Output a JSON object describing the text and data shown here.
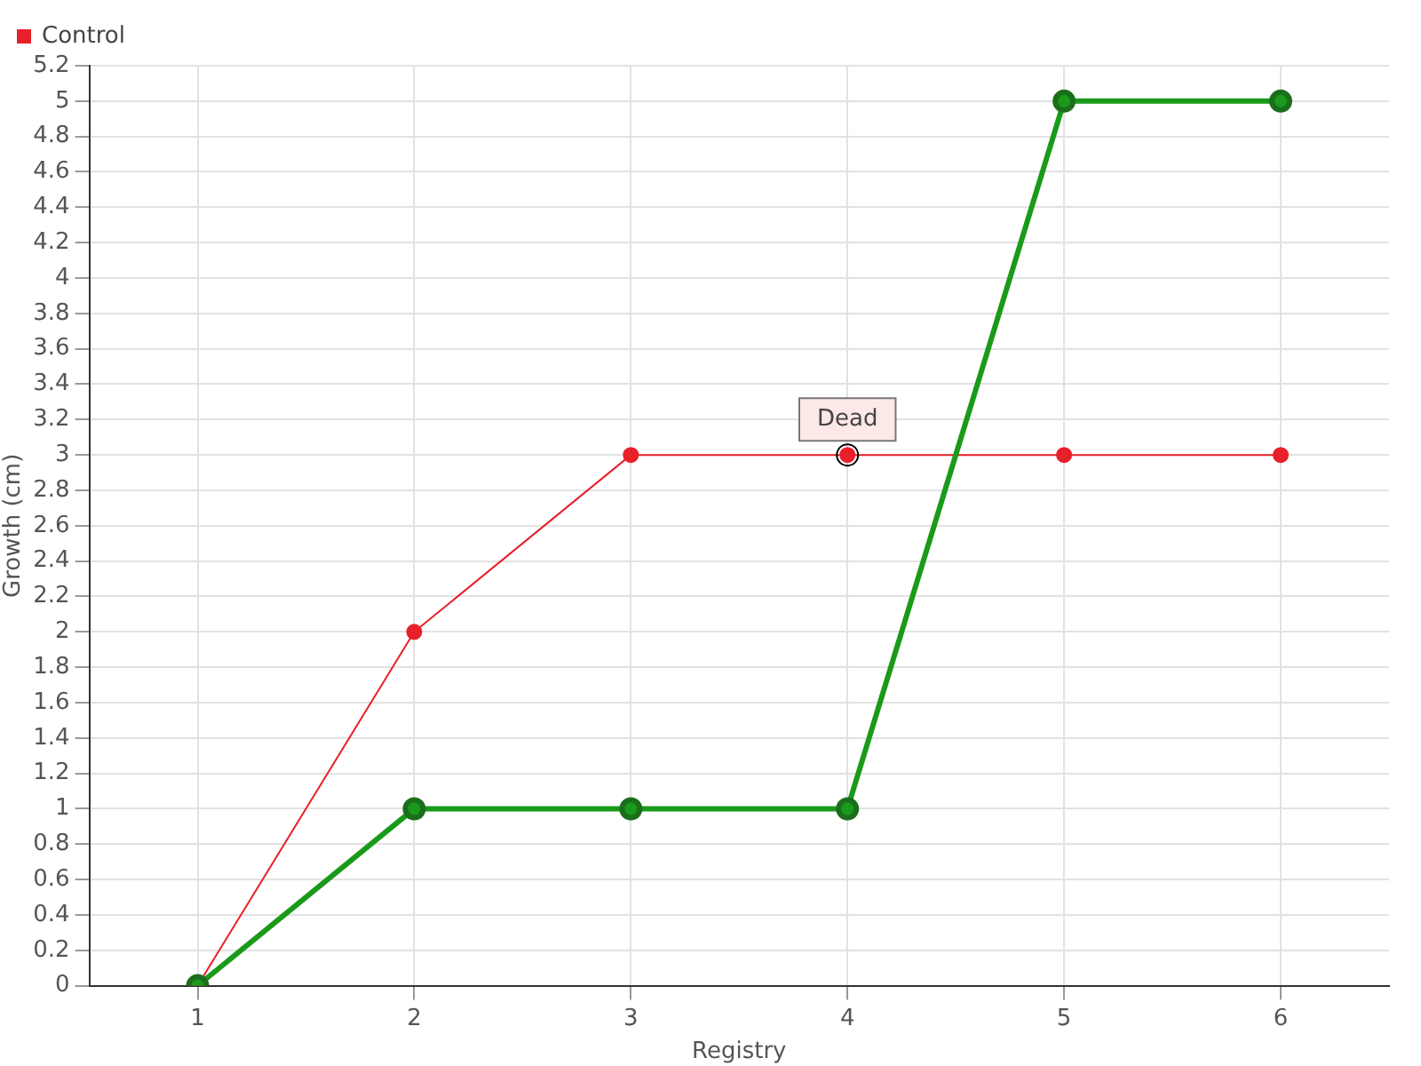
{
  "chart_data": {
    "type": "line",
    "xlabel": "Registry",
    "ylabel": "Growth (cm)",
    "categories": [
      "1",
      "2",
      "3",
      "4",
      "5",
      "6"
    ],
    "series": [
      {
        "color": "#1a9a1a",
        "values": [
          0,
          1,
          1,
          1,
          5,
          5
        ]
      },
      {
        "name": "Control",
        "color": "#e8202a",
        "values": [
          0,
          2,
          3,
          3,
          3,
          3
        ]
      }
    ],
    "ylim": [
      0,
      5.2
    ],
    "yticks": [
      0,
      0.2,
      0.4,
      0.6,
      0.8,
      1,
      1.2,
      1.4,
      1.6,
      1.8,
      2,
      2.2,
      2.4,
      2.6,
      2.8,
      3,
      3.2,
      3.4,
      3.6,
      3.8,
      4,
      4.2,
      4.4,
      4.6,
      4.8,
      5,
      5.2
    ],
    "grid": true,
    "legend": "top left",
    "marker": "circle",
    "annotations": [
      {
        "text": "Dead",
        "x": "4",
        "y": 3
      }
    ]
  }
}
